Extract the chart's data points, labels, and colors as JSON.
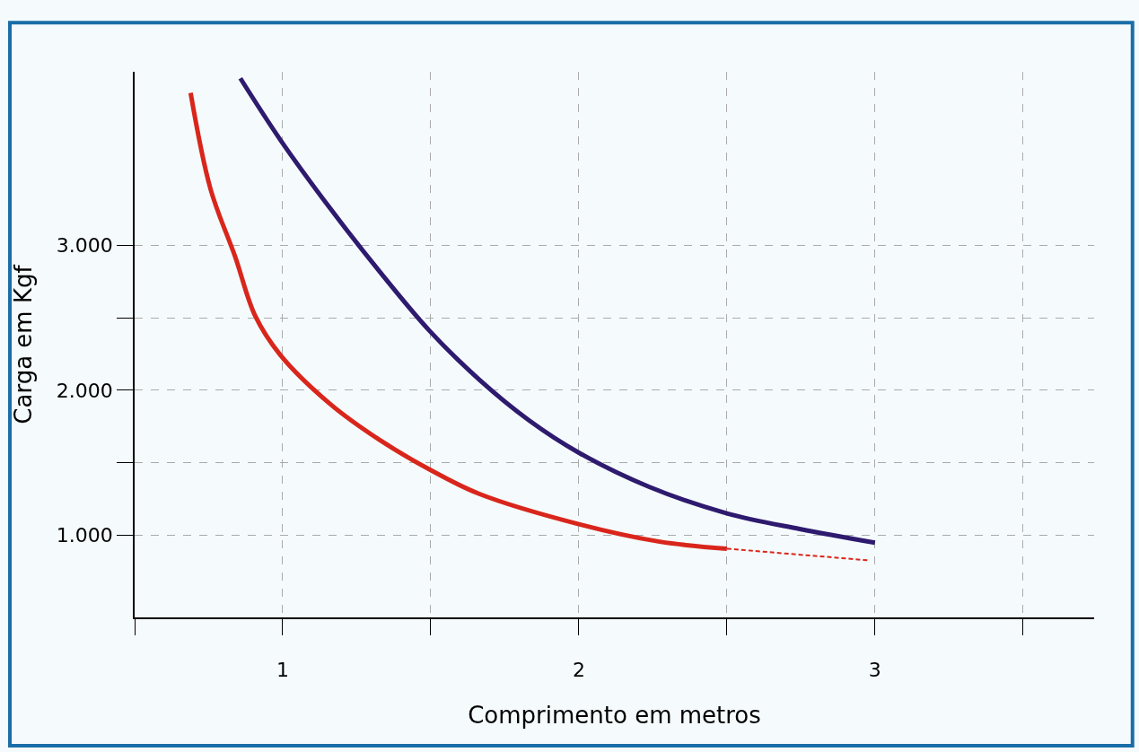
{
  "chart_data": {
    "type": "line",
    "xlabel": "Comprimento em metros",
    "ylabel": "Carga em Kgf",
    "xlim": [
      0.5,
      3.74
    ],
    "ylim": [
      430,
      4200
    ],
    "xticks": [
      {
        "value": 0.5,
        "label": null
      },
      1,
      {
        "value": 1.5,
        "label": null
      },
      2,
      {
        "value": 2.5,
        "label": null
      },
      3,
      {
        "value": 3.5,
        "label": null
      }
    ],
    "yticks": [
      {
        "value": 1000,
        "label": "1.000"
      },
      {
        "value": 1500,
        "label": null
      },
      {
        "value": 2000,
        "label": "2.000"
      },
      {
        "value": 2500,
        "label": null
      },
      {
        "value": 3000,
        "label": "3.000"
      }
    ],
    "grid": true,
    "marker": "none",
    "series": [
      {
        "color": "#2e1a6e",
        "line_style": "solid",
        "x": [
          0.857,
          0.992,
          1.16,
          1.328,
          1.495,
          1.663,
          1.832,
          2.0,
          2.239,
          2.5,
          2.746,
          3.0
        ],
        "values": [
          4155,
          3730,
          3257,
          2818,
          2412,
          2074,
          1791,
          1568,
          1331,
          1149,
          1041,
          946
        ]
      },
      {
        "color": "#d9261c",
        "line_style": "solid",
        "x": [
          0.689,
          0.756,
          0.84,
          0.907,
          0.992,
          1.16,
          1.328,
          1.495,
          1.663,
          2.0,
          2.273,
          2.5
        ],
        "values": [
          4054,
          3392,
          2919,
          2514,
          2243,
          1905,
          1655,
          1453,
          1284,
          1074,
          953,
          905
        ]
      },
      {
        "color": "#d9261c",
        "line_style": "dashed",
        "x": [
          2.5,
          2.98
        ],
        "values": [
          905,
          824
        ]
      }
    ]
  }
}
